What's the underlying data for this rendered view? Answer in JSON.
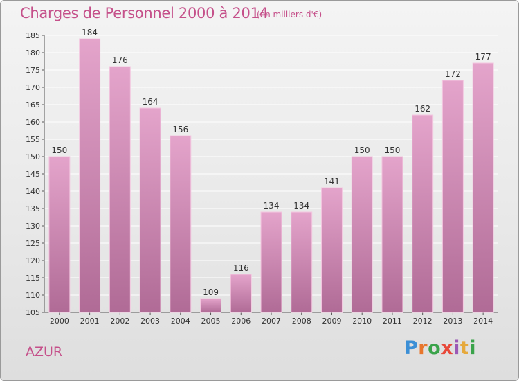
{
  "title": "Charges de Personnel 2000 à 2014",
  "subtitle": "(en milliers d'€)",
  "entity": "AZUR",
  "brand": {
    "name": "Proxiti",
    "colors": [
      "#3b8fd6",
      "#e8762c",
      "#3aa34a",
      "#e8493a",
      "#9b59b6",
      "#e6a93c",
      "#3aa34a"
    ]
  },
  "colors": {
    "bar_top": "#e4a4cb",
    "bar_bottom": "#b06b96",
    "text_accent": "#c5508a",
    "grid": "#ffffff"
  },
  "chart_data": {
    "type": "bar",
    "categories": [
      "2000",
      "2001",
      "2002",
      "2003",
      "2004",
      "2005",
      "2006",
      "2007",
      "2008",
      "2009",
      "2010",
      "2011",
      "2012",
      "2013",
      "2014"
    ],
    "values": [
      150,
      184,
      176,
      164,
      156,
      109,
      116,
      134,
      134,
      141,
      150,
      150,
      162,
      172,
      177
    ],
    "title": "Charges de Personnel 2000 à 2014",
    "subtitle": "(en milliers d'€)",
    "ylim": [
      105,
      185
    ],
    "yticks": [
      "105",
      "110",
      "115",
      "120",
      "125",
      "130",
      "135",
      "140",
      "145",
      "150",
      "155",
      "160",
      "165",
      "170",
      "175",
      "180",
      "185"
    ],
    "grid": true,
    "data_labels": true
  }
}
